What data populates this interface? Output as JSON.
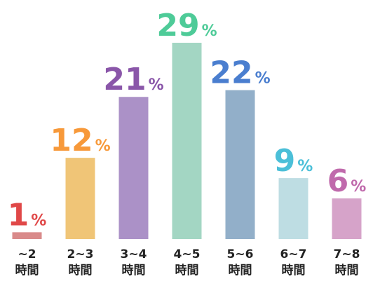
{
  "chart_data": {
    "type": "bar",
    "categories": [
      "~2\n時間",
      "2~3\n時間",
      "3~4\n時間",
      "4~5\n時間",
      "5~6\n時間",
      "6~7\n時間",
      "7~8\n時間"
    ],
    "values": [
      1,
      12,
      21,
      29,
      22,
      9,
      6
    ],
    "value_labels": [
      "1%",
      "12%",
      "21%",
      "29%",
      "22%",
      "9%",
      "6%"
    ],
    "colors": [
      "#d98a8a",
      "#f0c577",
      "#ab91c7",
      "#a3d6c3",
      "#92afc9",
      "#bedde3",
      "#d6a3c9"
    ],
    "label_colors": [
      "#e04848",
      "#f7993a",
      "#8a56a9",
      "#4ecb98",
      "#4a7ecf",
      "#4bbfd8",
      "#c06aac"
    ]
  }
}
